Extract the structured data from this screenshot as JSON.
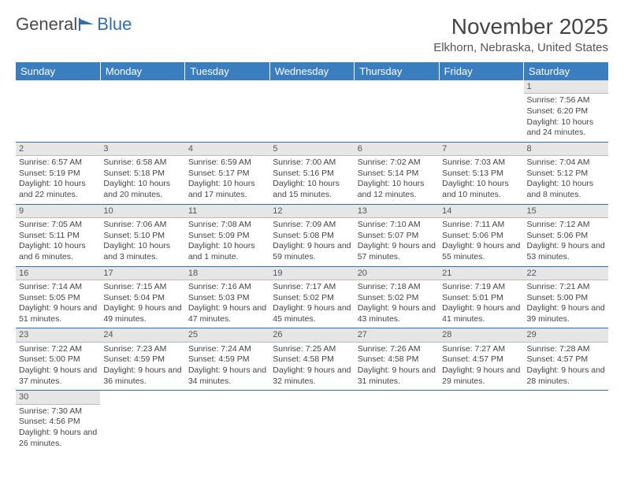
{
  "logo": {
    "text_a": "General",
    "text_b": "Blue"
  },
  "title": "November 2025",
  "location": "Elkhorn, Nebraska, United States",
  "colors": {
    "header_bg": "#3a7ebf",
    "header_text": "#ffffff",
    "daynum_bg": "#e6e6e6",
    "row_border": "#2f6fab",
    "logo_accent": "#2f6fab"
  },
  "weekdays": [
    "Sunday",
    "Monday",
    "Tuesday",
    "Wednesday",
    "Thursday",
    "Friday",
    "Saturday"
  ],
  "days": {
    "1": {
      "sunrise": "7:56 AM",
      "sunset": "6:20 PM",
      "daylight": "10 hours and 24 minutes."
    },
    "2": {
      "sunrise": "6:57 AM",
      "sunset": "5:19 PM",
      "daylight": "10 hours and 22 minutes."
    },
    "3": {
      "sunrise": "6:58 AM",
      "sunset": "5:18 PM",
      "daylight": "10 hours and 20 minutes."
    },
    "4": {
      "sunrise": "6:59 AM",
      "sunset": "5:17 PM",
      "daylight": "10 hours and 17 minutes."
    },
    "5": {
      "sunrise": "7:00 AM",
      "sunset": "5:16 PM",
      "daylight": "10 hours and 15 minutes."
    },
    "6": {
      "sunrise": "7:02 AM",
      "sunset": "5:14 PM",
      "daylight": "10 hours and 12 minutes."
    },
    "7": {
      "sunrise": "7:03 AM",
      "sunset": "5:13 PM",
      "daylight": "10 hours and 10 minutes."
    },
    "8": {
      "sunrise": "7:04 AM",
      "sunset": "5:12 PM",
      "daylight": "10 hours and 8 minutes."
    },
    "9": {
      "sunrise": "7:05 AM",
      "sunset": "5:11 PM",
      "daylight": "10 hours and 6 minutes."
    },
    "10": {
      "sunrise": "7:06 AM",
      "sunset": "5:10 PM",
      "daylight": "10 hours and 3 minutes."
    },
    "11": {
      "sunrise": "7:08 AM",
      "sunset": "5:09 PM",
      "daylight": "10 hours and 1 minute."
    },
    "12": {
      "sunrise": "7:09 AM",
      "sunset": "5:08 PM",
      "daylight": "9 hours and 59 minutes."
    },
    "13": {
      "sunrise": "7:10 AM",
      "sunset": "5:07 PM",
      "daylight": "9 hours and 57 minutes."
    },
    "14": {
      "sunrise": "7:11 AM",
      "sunset": "5:06 PM",
      "daylight": "9 hours and 55 minutes."
    },
    "15": {
      "sunrise": "7:12 AM",
      "sunset": "5:06 PM",
      "daylight": "9 hours and 53 minutes."
    },
    "16": {
      "sunrise": "7:14 AM",
      "sunset": "5:05 PM",
      "daylight": "9 hours and 51 minutes."
    },
    "17": {
      "sunrise": "7:15 AM",
      "sunset": "5:04 PM",
      "daylight": "9 hours and 49 minutes."
    },
    "18": {
      "sunrise": "7:16 AM",
      "sunset": "5:03 PM",
      "daylight": "9 hours and 47 minutes."
    },
    "19": {
      "sunrise": "7:17 AM",
      "sunset": "5:02 PM",
      "daylight": "9 hours and 45 minutes."
    },
    "20": {
      "sunrise": "7:18 AM",
      "sunset": "5:02 PM",
      "daylight": "9 hours and 43 minutes."
    },
    "21": {
      "sunrise": "7:19 AM",
      "sunset": "5:01 PM",
      "daylight": "9 hours and 41 minutes."
    },
    "22": {
      "sunrise": "7:21 AM",
      "sunset": "5:00 PM",
      "daylight": "9 hours and 39 minutes."
    },
    "23": {
      "sunrise": "7:22 AM",
      "sunset": "5:00 PM",
      "daylight": "9 hours and 37 minutes."
    },
    "24": {
      "sunrise": "7:23 AM",
      "sunset": "4:59 PM",
      "daylight": "9 hours and 36 minutes."
    },
    "25": {
      "sunrise": "7:24 AM",
      "sunset": "4:59 PM",
      "daylight": "9 hours and 34 minutes."
    },
    "26": {
      "sunrise": "7:25 AM",
      "sunset": "4:58 PM",
      "daylight": "9 hours and 32 minutes."
    },
    "27": {
      "sunrise": "7:26 AM",
      "sunset": "4:58 PM",
      "daylight": "9 hours and 31 minutes."
    },
    "28": {
      "sunrise": "7:27 AM",
      "sunset": "4:57 PM",
      "daylight": "9 hours and 29 minutes."
    },
    "29": {
      "sunrise": "7:28 AM",
      "sunset": "4:57 PM",
      "daylight": "9 hours and 28 minutes."
    },
    "30": {
      "sunrise": "7:30 AM",
      "sunset": "4:56 PM",
      "daylight": "9 hours and 26 minutes."
    }
  },
  "labels": {
    "sunrise": "Sunrise: ",
    "sunset": "Sunset: ",
    "daylight": "Daylight: "
  },
  "layout": {
    "first_day_column": 6,
    "total_days": 30
  }
}
